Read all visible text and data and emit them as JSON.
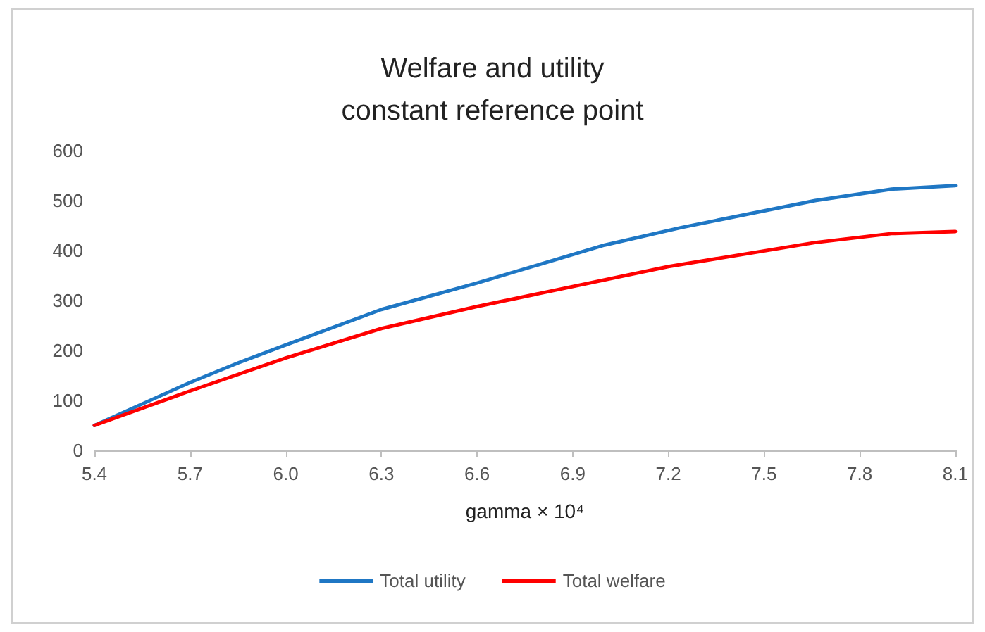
{
  "chart_data": {
    "type": "line",
    "title": "Welfare and utility\nconstant reference point",
    "xlabel": "gamma × 10⁴",
    "xlim": [
      5.4,
      8.1
    ],
    "xticks": [
      {
        "value": 5.4,
        "label": "5.4"
      },
      {
        "value": 5.7,
        "label": "5.7"
      },
      {
        "value": 6.0,
        "label": "6.0"
      },
      {
        "value": 6.3,
        "label": "6.3"
      },
      {
        "value": 6.6,
        "label": "6.6"
      },
      {
        "value": 6.9,
        "label": "6.9"
      },
      {
        "value": 7.2,
        "label": "7.2"
      },
      {
        "value": 7.5,
        "label": "7.5"
      },
      {
        "value": 7.8,
        "label": "7.8"
      },
      {
        "value": 8.1,
        "label": "8.1"
      }
    ],
    "ylim": [
      0,
      600
    ],
    "yticks": [
      0,
      100,
      200,
      300,
      400,
      500,
      600
    ],
    "grid": false,
    "legend": "bottom",
    "marker": "none",
    "line_style": "solid",
    "series": [
      {
        "name": "Total utility",
        "color": "#1f77c4",
        "x": [
          5.4,
          5.7,
          5.85,
          6.0,
          6.3,
          6.6,
          7.0,
          7.24,
          7.66,
          7.9,
          8.1
        ],
        "values": [
          50,
          136,
          175,
          211,
          282,
          335,
          411,
          446,
          500,
          523,
          530
        ]
      },
      {
        "name": "Total welfare",
        "color": "#ff0000",
        "x": [
          5.4,
          5.7,
          6.0,
          6.3,
          6.6,
          7.2,
          7.66,
          7.9,
          8.1
        ],
        "values": [
          50,
          119,
          185,
          244,
          288,
          368,
          416,
          434,
          438
        ]
      }
    ]
  }
}
